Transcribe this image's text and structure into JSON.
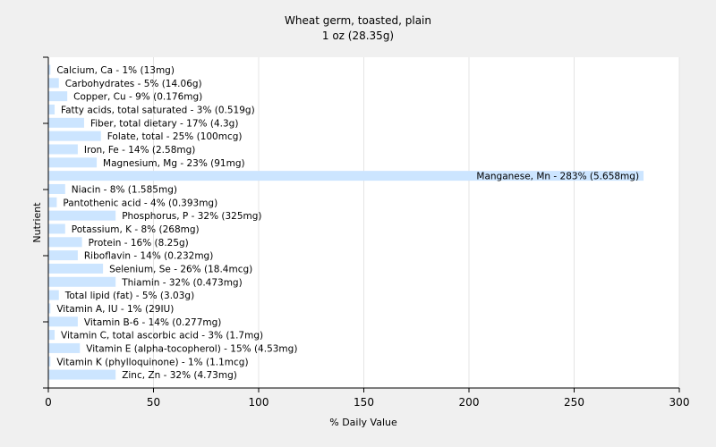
{
  "chart_data": {
    "type": "bar",
    "orientation": "horizontal",
    "title": "Wheat germ, toasted, plain",
    "subtitle": "1 oz (28.35g)",
    "xlabel": "% Daily Value",
    "ylabel": "Nutrient",
    "xlim": [
      0,
      300
    ],
    "xticks": [
      0,
      50,
      100,
      150,
      200,
      250,
      300
    ],
    "grid": true,
    "bar_color": "#cce5ff",
    "categories": [
      "Calcium, Ca - 1% (13mg)",
      "Carbohydrates - 5% (14.06g)",
      "Copper, Cu - 9% (0.176mg)",
      "Fatty acids, total saturated - 3% (0.519g)",
      "Fiber, total dietary - 17% (4.3g)",
      "Folate, total - 25% (100mcg)",
      "Iron, Fe - 14% (2.58mg)",
      "Magnesium, Mg - 23% (91mg)",
      "Manganese, Mn - 283% (5.658mg)",
      "Niacin - 8% (1.585mg)",
      "Pantothenic acid - 4% (0.393mg)",
      "Phosphorus, P - 32% (325mg)",
      "Potassium, K - 8% (268mg)",
      "Protein - 16% (8.25g)",
      "Riboflavin - 14% (0.232mg)",
      "Selenium, Se - 26% (18.4mcg)",
      "Thiamin - 32% (0.473mg)",
      "Total lipid (fat) - 5% (3.03g)",
      "Vitamin A, IU - 1% (29IU)",
      "Vitamin B-6 - 14% (0.277mg)",
      "Vitamin C, total ascorbic acid - 3% (1.7mg)",
      "Vitamin E (alpha-tocopherol) - 15% (4.53mg)",
      "Vitamin K (phylloquinone) - 1% (1.1mcg)",
      "Zinc, Zn - 32% (4.73mg)"
    ],
    "values": [
      1,
      5,
      9,
      3,
      17,
      25,
      14,
      23,
      283,
      8,
      4,
      32,
      8,
      16,
      14,
      26,
      32,
      5,
      1,
      14,
      3,
      15,
      1,
      32
    ]
  }
}
